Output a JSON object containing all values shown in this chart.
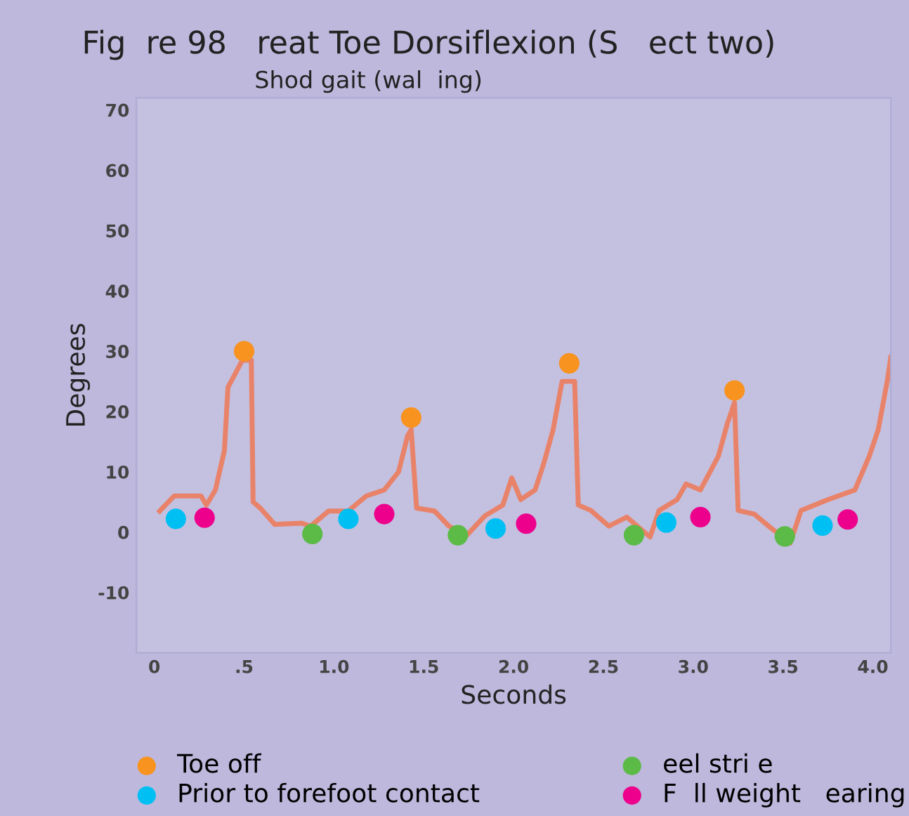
{
  "chart_data": {
    "type": "line",
    "title": "Fig  re 98   reat Toe Dorsiflexion (S   ect two)",
    "subtitle": "Shod gait (wal  ing)",
    "xlabel": "Seconds",
    "ylabel": "Degrees",
    "xlim": [
      -0.1,
      4.1
    ],
    "ylim": [
      -20,
      72
    ],
    "xticks": [
      {
        "value": 0,
        "label": "0"
      },
      {
        "value": 0.5,
        "label": ".5"
      },
      {
        "value": 1.0,
        "label": "1.0"
      },
      {
        "value": 1.5,
        "label": "1.5"
      },
      {
        "value": 2.0,
        "label": "2.0"
      },
      {
        "value": 2.5,
        "label": "2.5"
      },
      {
        "value": 3.0,
        "label": "3.0"
      },
      {
        "value": 3.5,
        "label": "3.5"
      },
      {
        "value": 4.0,
        "label": "4.0"
      }
    ],
    "yticks": [
      -10,
      0,
      10,
      20,
      30,
      40,
      50,
      60,
      70
    ],
    "grid": false,
    "legend": "bottom",
    "line_style": "solid",
    "series": [
      {
        "color": "#e8836a",
        "marker": "none",
        "x": [
          0.03,
          0.11,
          0.26,
          0.29,
          0.34,
          0.39,
          0.41,
          0.49,
          0.54,
          0.55,
          0.59,
          0.67,
          0.82,
          0.87,
          0.97,
          1.08,
          1.18,
          1.28,
          1.36,
          1.41,
          1.43,
          1.46,
          1.56,
          1.64,
          1.74,
          1.84,
          1.94,
          1.99,
          2.04,
          2.12,
          2.17,
          2.22,
          2.27,
          2.34,
          2.36,
          2.43,
          2.53,
          2.63,
          2.76,
          2.81,
          2.91,
          2.96,
          3.04,
          3.14,
          3.19,
          3.23,
          3.25,
          3.34,
          3.42,
          3.54,
          3.6,
          3.75,
          3.9,
          3.98,
          4.03,
          4.08,
          4.1
        ],
        "values": [
          3.5,
          6,
          6,
          4.5,
          7,
          13.5,
          24,
          28.5,
          28.5,
          5,
          4,
          1.3,
          1.5,
          1,
          3.5,
          3.5,
          6,
          7,
          10,
          16,
          17,
          4,
          3.5,
          1,
          -0.5,
          2.7,
          4.5,
          9,
          5.4,
          7,
          11.6,
          17,
          25,
          25,
          4.5,
          3.6,
          1,
          2.5,
          -0.8,
          3.6,
          5.4,
          8,
          7,
          12.6,
          18,
          21.5,
          3.6,
          3,
          1,
          -1.8,
          3.6,
          5.4,
          7,
          12.6,
          17,
          25,
          29
        ]
      },
      {
        "type": "scatter",
        "name": "Toe off",
        "color": "#f7931e",
        "marker": "circle",
        "x": [
          0.5,
          1.43,
          2.31,
          3.23
        ],
        "values": [
          30,
          19,
          28,
          23.5
        ]
      },
      {
        "type": "scatter",
        "name": "Prior to forefoot contact",
        "color": "#00bff3",
        "marker": "circle",
        "x": [
          0.12,
          1.08,
          1.9,
          2.85,
          3.72
        ],
        "values": [
          2.2,
          2.2,
          0.6,
          1.6,
          1.1
        ]
      },
      {
        "type": "scatter",
        "name": "eel stri e",
        "color": "#5bbb46",
        "marker": "circle",
        "x": [
          0.88,
          1.69,
          2.67,
          3.51
        ],
        "values": [
          -0.3,
          -0.5,
          -0.5,
          -0.7
        ]
      },
      {
        "type": "scatter",
        "name": "F  ll weight   earing",
        "color": "#ec008c",
        "marker": "circle",
        "x": [
          0.28,
          1.28,
          2.07,
          3.04,
          3.86
        ],
        "values": [
          2.4,
          3,
          1.4,
          2.5,
          2.1
        ]
      }
    ]
  }
}
